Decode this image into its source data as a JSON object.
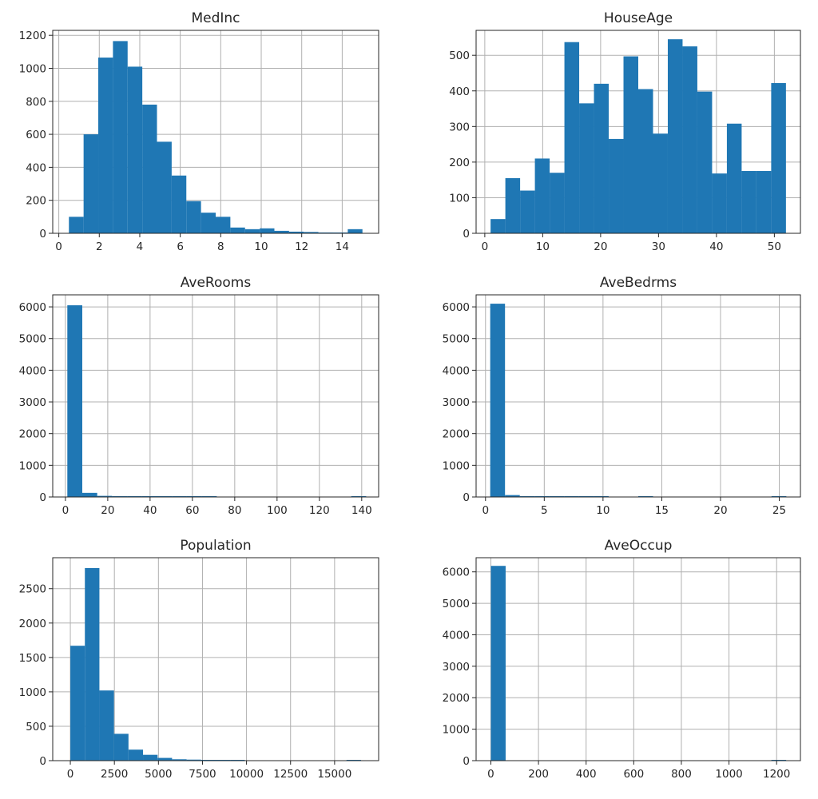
{
  "chart_data": [
    {
      "type": "bar",
      "title": "MedInc",
      "xlim": [
        -0.3,
        15.8
      ],
      "ylim": [
        0,
        1230
      ],
      "xticks": [
        0,
        2,
        4,
        6,
        8,
        10,
        12,
        14
      ],
      "xtick_labels": [
        "0",
        "2",
        "4",
        "6",
        "8",
        "10",
        "12",
        "14"
      ],
      "yticks": [
        0,
        200,
        400,
        600,
        800,
        1000,
        1200
      ],
      "ytick_labels": [
        "0",
        "200",
        "400",
        "600",
        "800",
        "1000",
        "1200"
      ],
      "bin_edges": [
        0.5,
        1.225,
        1.95,
        2.675,
        3.4,
        4.125,
        4.85,
        5.575,
        6.3,
        7.025,
        7.75,
        8.475,
        9.2,
        9.925,
        10.65,
        11.375,
        12.1,
        12.825,
        13.55,
        14.275,
        15.0
      ],
      "values": [
        100,
        600,
        1065,
        1165,
        1010,
        780,
        555,
        350,
        195,
        125,
        100,
        35,
        25,
        30,
        15,
        10,
        8,
        5,
        2,
        25
      ],
      "color": "#1f77b4",
      "grid": true,
      "xlabel": "",
      "ylabel": ""
    },
    {
      "type": "bar",
      "title": "HouseAge",
      "xlim": [
        -1.5,
        54.5
      ],
      "ylim": [
        0,
        570
      ],
      "xticks": [
        0,
        10,
        20,
        30,
        40,
        50
      ],
      "xtick_labels": [
        "0",
        "10",
        "20",
        "30",
        "40",
        "50"
      ],
      "yticks": [
        0,
        100,
        200,
        300,
        400,
        500
      ],
      "ytick_labels": [
        "0",
        "100",
        "200",
        "300",
        "400",
        "500"
      ],
      "bin_edges": [
        1.0,
        3.55,
        6.1,
        8.65,
        11.2,
        13.75,
        16.3,
        18.85,
        21.4,
        23.95,
        26.5,
        29.05,
        31.6,
        34.15,
        36.7,
        39.25,
        41.8,
        44.35,
        46.9,
        49.45,
        52.0
      ],
      "values": [
        40,
        155,
        120,
        210,
        170,
        537,
        365,
        420,
        265,
        497,
        405,
        280,
        545,
        525,
        398,
        168,
        308,
        175,
        175,
        422
      ],
      "color": "#1f77b4",
      "grid": true,
      "xlabel": "",
      "ylabel": ""
    },
    {
      "type": "bar",
      "title": "AveRooms",
      "xlim": [
        -6.0,
        148.0
      ],
      "ylim": [
        0,
        6380
      ],
      "xticks": [
        0,
        20,
        40,
        60,
        80,
        100,
        120,
        140
      ],
      "xtick_labels": [
        "0",
        "20",
        "40",
        "60",
        "80",
        "100",
        "120",
        "140"
      ],
      "yticks": [
        0,
        1000,
        2000,
        3000,
        4000,
        5000,
        6000
      ],
      "ytick_labels": [
        "0",
        "1000",
        "2000",
        "3000",
        "4000",
        "5000",
        "6000"
      ],
      "bin_edges": [
        0.9,
        7.96,
        15.02,
        22.08,
        29.14,
        36.2,
        43.26,
        50.32,
        57.38,
        64.44,
        71.5,
        78.56,
        85.62,
        92.68,
        99.74,
        106.8,
        113.86,
        120.92,
        127.98,
        135.04,
        142.1
      ],
      "values": [
        6050,
        130,
        35,
        25,
        15,
        10,
        3,
        8,
        15,
        2,
        0,
        0,
        0,
        0,
        0,
        0,
        0,
        0,
        0,
        10
      ],
      "color": "#1f77b4",
      "grid": true,
      "xlabel": "",
      "ylabel": ""
    },
    {
      "type": "bar",
      "title": "AveBedrms",
      "xlim": [
        -0.8,
        26.8
      ],
      "ylim": [
        0,
        6380
      ],
      "xticks": [
        0,
        5,
        10,
        15,
        20,
        25
      ],
      "xtick_labels": [
        "0",
        "5",
        "10",
        "15",
        "20",
        "25"
      ],
      "yticks": [
        0,
        1000,
        2000,
        3000,
        4000,
        5000,
        6000
      ],
      "ytick_labels": [
        "0",
        "1000",
        "2000",
        "3000",
        "4000",
        "5000",
        "6000"
      ],
      "bin_edges": [
        0.4,
        1.66,
        2.92,
        4.18,
        5.44,
        6.7,
        7.96,
        9.22,
        10.48,
        11.74,
        13.0,
        14.26,
        15.52,
        16.78,
        18.04,
        19.3,
        20.56,
        21.82,
        23.08,
        24.34,
        25.6
      ],
      "values": [
        6100,
        60,
        25,
        20,
        15,
        12,
        10,
        8,
        0,
        0,
        10,
        0,
        0,
        0,
        0,
        0,
        0,
        0,
        0,
        8
      ],
      "color": "#1f77b4",
      "grid": true,
      "xlabel": "",
      "ylabel": ""
    },
    {
      "type": "bar",
      "title": "Population",
      "xlim": [
        -1000,
        17500
      ],
      "ylim": [
        0,
        2950
      ],
      "xticks": [
        0,
        2500,
        5000,
        7500,
        10000,
        12500,
        15000
      ],
      "xtick_labels": [
        "0",
        "2500",
        "5000",
        "7500",
        "10000",
        "12500",
        "15000"
      ],
      "yticks": [
        0,
        500,
        1000,
        1500,
        2000,
        2500
      ],
      "ytick_labels": [
        "0",
        "500",
        "1000",
        "1500",
        "2000",
        "2500"
      ],
      "bin_edges": [
        0,
        825,
        1650,
        2475,
        3300,
        4125,
        4950,
        5775,
        6600,
        7425,
        8250,
        9075,
        9900,
        10725,
        11550,
        12375,
        13200,
        14025,
        14850,
        15675,
        16500
      ],
      "values": [
        1670,
        2800,
        1020,
        390,
        160,
        85,
        40,
        20,
        15,
        10,
        5,
        2,
        0,
        0,
        0,
        0,
        0,
        0,
        0,
        1
      ],
      "color": "#1f77b4",
      "grid": true,
      "xlabel": "",
      "ylabel": ""
    },
    {
      "type": "bar",
      "title": "AveOccup",
      "xlim": [
        -62,
        1300
      ],
      "ylim": [
        0,
        6450
      ],
      "xticks": [
        0,
        200,
        400,
        600,
        800,
        1000,
        1200
      ],
      "xtick_labels": [
        "0",
        "200",
        "400",
        "600",
        "800",
        "1000",
        "1200"
      ],
      "yticks": [
        0,
        1000,
        2000,
        3000,
        4000,
        5000,
        6000
      ],
      "ytick_labels": [
        "0",
        "1000",
        "2000",
        "3000",
        "4000",
        "5000",
        "6000"
      ],
      "bin_edges": [
        0,
        62,
        124,
        186,
        248,
        310,
        372,
        434,
        496,
        558,
        620,
        682,
        744,
        806,
        868,
        930,
        992,
        1054,
        1116,
        1178,
        1240
      ],
      "values": [
        6190,
        0,
        0,
        0,
        0,
        0,
        0,
        0,
        0,
        0,
        0,
        0,
        0,
        0,
        0,
        0,
        0,
        0,
        0,
        1
      ],
      "color": "#1f77b4",
      "grid": true,
      "xlabel": "",
      "ylabel": ""
    }
  ]
}
